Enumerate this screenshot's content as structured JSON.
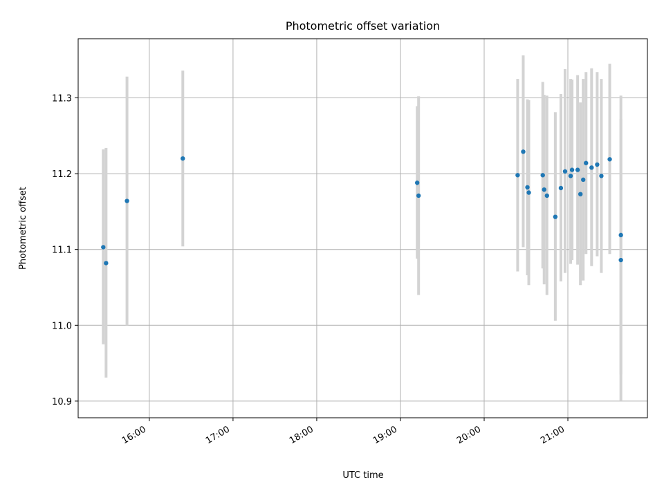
{
  "chart_data": {
    "type": "scatter",
    "title": "Photometric offset variation",
    "xlabel": "UTC time",
    "ylabel": "Photometric offset",
    "x_unit": "time of day (UTC)",
    "xlim": [
      "15:09",
      "21:57"
    ],
    "ylim": [
      10.878,
      11.378
    ],
    "x_ticks": [
      "16:00",
      "17:00",
      "18:00",
      "19:00",
      "20:00",
      "21:00"
    ],
    "y_ticks": [
      "10.9",
      "11.0",
      "11.1",
      "11.2",
      "11.3"
    ],
    "grid": true,
    "legend": false,
    "colors": {
      "point": "#1f77b4",
      "error_bar": "#d3d3d3",
      "grid": "#b0b0b0"
    },
    "series": [
      {
        "points": [
          {
            "x": "15:27",
            "y": 11.103,
            "err_low": 10.975,
            "err_high": 11.232
          },
          {
            "x": "15:29",
            "y": 11.082,
            "err_low": 10.931,
            "err_high": 11.234
          },
          {
            "x": "15:44",
            "y": 11.164,
            "err_low": 11.0,
            "err_high": 11.328
          },
          {
            "x": "16:24",
            "y": 11.22,
            "err_low": 11.104,
            "err_high": 11.336
          },
          {
            "x": "19:12",
            "y": 11.188,
            "err_low": 11.088,
            "err_high": 11.289
          },
          {
            "x": "19:13",
            "y": 11.171,
            "err_low": 11.04,
            "err_high": 11.302
          },
          {
            "x": "20:24",
            "y": 11.198,
            "err_low": 11.071,
            "err_high": 11.325
          },
          {
            "x": "20:28",
            "y": 11.229,
            "err_low": 11.103,
            "err_high": 11.356
          },
          {
            "x": "20:31",
            "y": 11.182,
            "err_low": 11.066,
            "err_high": 11.298
          },
          {
            "x": "20:32",
            "y": 11.175,
            "err_low": 11.053,
            "err_high": 11.297
          },
          {
            "x": "20:42",
            "y": 11.198,
            "err_low": 11.075,
            "err_high": 11.321
          },
          {
            "x": "20:43",
            "y": 11.179,
            "err_low": 11.054,
            "err_high": 11.304
          },
          {
            "x": "20:45",
            "y": 11.171,
            "err_low": 11.04,
            "err_high": 11.303
          },
          {
            "x": "20:51",
            "y": 11.143,
            "err_low": 11.006,
            "err_high": 11.281
          },
          {
            "x": "20:55",
            "y": 11.181,
            "err_low": 11.058,
            "err_high": 11.305
          },
          {
            "x": "20:58",
            "y": 11.203,
            "err_low": 11.069,
            "err_high": 11.338
          },
          {
            "x": "21:02",
            "y": 11.197,
            "err_low": 11.081,
            "err_high": 11.325
          },
          {
            "x": "21:03",
            "y": 11.205,
            "err_low": 11.086,
            "err_high": 11.324
          },
          {
            "x": "21:07",
            "y": 11.205,
            "err_low": 11.08,
            "err_high": 11.33
          },
          {
            "x": "21:09",
            "y": 11.173,
            "err_low": 11.053,
            "err_high": 11.294
          },
          {
            "x": "21:11",
            "y": 11.192,
            "err_low": 11.059,
            "err_high": 11.325
          },
          {
            "x": "21:13",
            "y": 11.214,
            "err_low": 11.094,
            "err_high": 11.334
          },
          {
            "x": "21:17",
            "y": 11.208,
            "err_low": 11.078,
            "err_high": 11.339
          },
          {
            "x": "21:21",
            "y": 11.212,
            "err_low": 11.091,
            "err_high": 11.334
          },
          {
            "x": "21:24",
            "y": 11.197,
            "err_low": 11.069,
            "err_high": 11.325
          },
          {
            "x": "21:30",
            "y": 11.219,
            "err_low": 11.094,
            "err_high": 11.345
          },
          {
            "x": "21:38",
            "y": 11.119,
            "err_low": 10.935,
            "err_high": 11.303
          },
          {
            "x": "21:38",
            "y": 11.086,
            "err_low": 10.9,
            "err_high": 11.272
          }
        ]
      }
    ]
  }
}
